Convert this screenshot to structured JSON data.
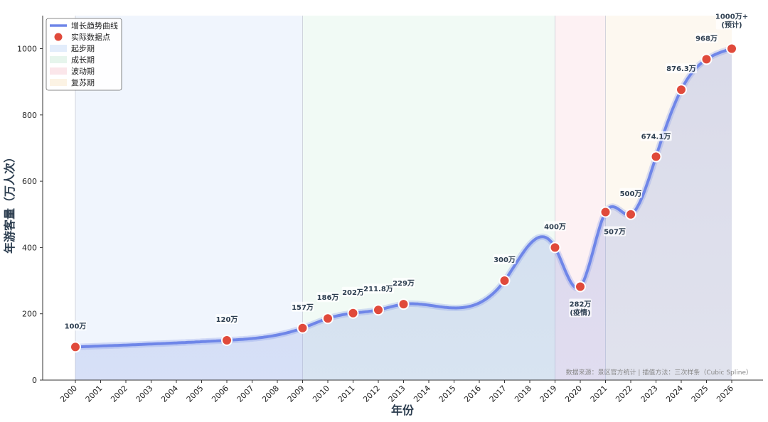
{
  "chart_data": {
    "type": "line",
    "xlabel": "年份",
    "ylabel": "年游客量（万人次）",
    "xlim": [
      2000,
      2026
    ],
    "ylim": [
      0,
      1100
    ],
    "y_ticks": [
      0,
      200,
      400,
      600,
      800,
      1000
    ],
    "x_ticks": [
      "2000",
      "2001",
      "2002",
      "2003",
      "2004",
      "2005",
      "2006",
      "2007",
      "2008",
      "2009",
      "2010",
      "2011",
      "2012",
      "2013",
      "2014",
      "2015",
      "2016",
      "2017",
      "2018",
      "2019",
      "2020",
      "2021",
      "2022",
      "2023",
      "2024",
      "2025",
      "2026"
    ],
    "grid": false,
    "legend_position": "top-left",
    "series": [
      {
        "name": "实际数据点",
        "color": "#e04a3b",
        "points": [
          {
            "x": 2000,
            "y": 100,
            "label": "100万"
          },
          {
            "x": 2006,
            "y": 120,
            "label": "120万"
          },
          {
            "x": 2009,
            "y": 157,
            "label": "157万"
          },
          {
            "x": 2010,
            "y": 186,
            "label": "186万"
          },
          {
            "x": 2011,
            "y": 202,
            "label": "202万"
          },
          {
            "x": 2012,
            "y": 211.8,
            "label": "211.8万"
          },
          {
            "x": 2013,
            "y": 229,
            "label": "229万"
          },
          {
            "x": 2017,
            "y": 300,
            "label": "300万"
          },
          {
            "x": 2019,
            "y": 400,
            "label": "400万"
          },
          {
            "x": 2020,
            "y": 282,
            "label": "282万",
            "label2": "(疫情)",
            "label_color": "#e04a3b"
          },
          {
            "x": 2021,
            "y": 507,
            "label": "507万"
          },
          {
            "x": 2022,
            "y": 500,
            "label": "500万"
          },
          {
            "x": 2023,
            "y": 674.1,
            "label": "674.1万"
          },
          {
            "x": 2024,
            "y": 876.3,
            "label": "876.3万"
          },
          {
            "x": 2025,
            "y": 968,
            "label": "968万"
          },
          {
            "x": 2026,
            "y": 1000,
            "label": "1000万+",
            "label2": "(预计)",
            "label_color": "#27a35a"
          }
        ]
      },
      {
        "name": "增长趋势曲线",
        "color": "#6f86e8",
        "interpolation": "cubic-spline"
      }
    ],
    "phases": [
      {
        "name": "起步期",
        "start": 2000,
        "end": 2009,
        "color": "#e3edfb"
      },
      {
        "name": "成长期",
        "start": 2009,
        "end": 2019,
        "color": "#e6f5ec"
      },
      {
        "name": "波动期",
        "start": 2019,
        "end": 2021,
        "color": "#fbe6ea"
      },
      {
        "name": "复苏期",
        "start": 2021,
        "end": 2026,
        "color": "#fcf3e4"
      }
    ],
    "source_note": "数据来源：景区官方统计 | 插值方法：三次样条（Cubic Spline）"
  }
}
